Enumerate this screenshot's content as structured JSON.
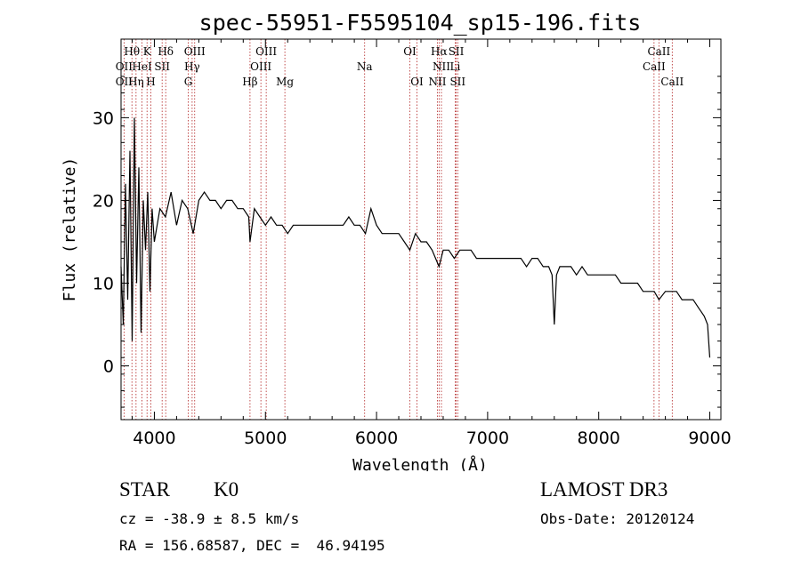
{
  "chart_data": {
    "type": "line",
    "title": "spec-55951-F5595104_sp15-196.fits",
    "xlabel": "Wavelength (Å)",
    "ylabel": "Flux (relative)",
    "xlim": [
      3700,
      9100
    ],
    "ylim": [
      -6.5,
      39.5
    ],
    "x_ticks": [
      4000,
      5000,
      6000,
      7000,
      8000,
      9000
    ],
    "y_ticks": [
      0,
      10,
      20,
      30
    ],
    "grid": false,
    "series": [
      {
        "name": "flux",
        "x": [
          3700,
          3720,
          3740,
          3760,
          3780,
          3800,
          3820,
          3840,
          3860,
          3880,
          3900,
          3920,
          3940,
          3960,
          3980,
          4000,
          4050,
          4100,
          4150,
          4200,
          4250,
          4300,
          4350,
          4400,
          4450,
          4500,
          4550,
          4600,
          4650,
          4700,
          4750,
          4800,
          4850,
          4861,
          4900,
          4950,
          5000,
          5050,
          5100,
          5150,
          5200,
          5250,
          5300,
          5350,
          5400,
          5450,
          5500,
          5550,
          5600,
          5650,
          5700,
          5750,
          5800,
          5850,
          5900,
          5950,
          6000,
          6050,
          6100,
          6150,
          6200,
          6250,
          6300,
          6350,
          6400,
          6450,
          6500,
          6563,
          6600,
          6650,
          6700,
          6750,
          6800,
          6850,
          6900,
          6950,
          7000,
          7050,
          7100,
          7150,
          7200,
          7250,
          7300,
          7350,
          7400,
          7450,
          7500,
          7550,
          7580,
          7600,
          7620,
          7650,
          7700,
          7750,
          7800,
          7850,
          7900,
          7950,
          8000,
          8050,
          8100,
          8150,
          8200,
          8250,
          8300,
          8350,
          8400,
          8450,
          8500,
          8542,
          8600,
          8650,
          8700,
          8750,
          8800,
          8850,
          8900,
          8950,
          8980,
          9000
        ],
        "values": [
          12,
          5,
          22,
          8,
          26,
          3,
          30,
          10,
          24,
          4,
          20,
          14,
          21,
          9,
          19,
          15,
          19,
          18,
          21,
          17,
          20,
          19,
          16,
          20,
          21,
          20,
          20,
          19,
          20,
          20,
          19,
          19,
          18,
          15,
          19,
          18,
          17,
          18,
          17,
          17,
          16,
          17,
          17,
          17,
          17,
          17,
          17,
          17,
          17,
          17,
          17,
          18,
          17,
          17,
          16,
          19,
          17,
          16,
          16,
          16,
          16,
          15,
          14,
          16,
          15,
          15,
          14,
          12,
          14,
          14,
          13,
          14,
          14,
          14,
          13,
          13,
          13,
          13,
          13,
          13,
          13,
          13,
          13,
          12,
          13,
          13,
          12,
          12,
          11,
          5,
          11,
          12,
          12,
          12,
          11,
          12,
          11,
          11,
          11,
          11,
          11,
          11,
          10,
          10,
          10,
          10,
          9,
          9,
          9,
          8,
          9,
          9,
          9,
          8,
          8,
          8,
          7,
          6,
          5,
          1
        ]
      }
    ],
    "annotations": [
      {
        "label": "Hθ",
        "x": 3798,
        "row": 1
      },
      {
        "label": "K",
        "x": 3934,
        "row": 1
      },
      {
        "label": "Hδ",
        "x": 4102,
        "row": 1
      },
      {
        "label": "OIII",
        "x": 4363,
        "row": 1
      },
      {
        "label": "OIII",
        "x": 5007,
        "row": 1
      },
      {
        "label": "OI",
        "x": 6300,
        "row": 1
      },
      {
        "label": "Hα",
        "x": 6563,
        "row": 1
      },
      {
        "label": "SII",
        "x": 6717,
        "row": 1
      },
      {
        "label": "CaII",
        "x": 8542,
        "row": 1
      },
      {
        "label": "OII",
        "x": 3727,
        "row": 2
      },
      {
        "label": "HeI",
        "x": 3889,
        "row": 2
      },
      {
        "label": "SII",
        "x": 4070,
        "row": 2
      },
      {
        "label": "Hγ",
        "x": 4340,
        "row": 2
      },
      {
        "label": "OIII",
        "x": 4959,
        "row": 2
      },
      {
        "label": "Na",
        "x": 5893,
        "row": 2
      },
      {
        "label": "NII",
        "x": 6584,
        "row": 2
      },
      {
        "label": "Li",
        "x": 6708,
        "row": 2
      },
      {
        "label": "CaII",
        "x": 8498,
        "row": 2
      },
      {
        "label": "OII",
        "x": 3727,
        "row": 3
      },
      {
        "label": "Hη",
        "x": 3835,
        "row": 3
      },
      {
        "label": "H",
        "x": 3968,
        "row": 3
      },
      {
        "label": "G",
        "x": 4305,
        "row": 3
      },
      {
        "label": "Hβ",
        "x": 4861,
        "row": 3
      },
      {
        "label": "Mg",
        "x": 5175,
        "row": 3
      },
      {
        "label": "OI",
        "x": 6364,
        "row": 3
      },
      {
        "label": "NII",
        "x": 6548,
        "row": 3
      },
      {
        "label": "SII",
        "x": 6731,
        "row": 3
      },
      {
        "label": "CaII",
        "x": 8662,
        "row": 3
      }
    ]
  },
  "info": {
    "object_class": "STAR",
    "subclass": "K0",
    "survey": "LAMOST DR3",
    "redshift": "cz = -38.9 ± 8.5 km/s",
    "obs_date": "Obs-Date: 20120124",
    "coords": "RA = 156.68587, DEC =  46.94195"
  },
  "colors": {
    "axis": "#000000",
    "spectrum": "#000000",
    "line_marker": "#b22222"
  }
}
